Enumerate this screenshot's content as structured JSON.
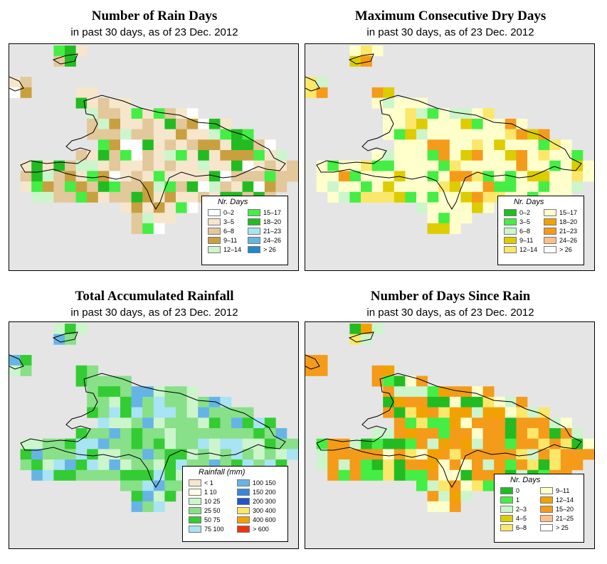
{
  "panels": [
    {
      "title": "Number of Rain Days",
      "subtitle": "in past 30 days, as of  23 Dec. 2012",
      "legend": {
        "title": "Nr. Days",
        "items": [
          {
            "label": "0–2",
            "color": "#ffffff"
          },
          {
            "label": "3–5",
            "color": "#f5e6cc"
          },
          {
            "label": "6–8",
            "color": "#e2c89a"
          },
          {
            "label": "9–11",
            "color": "#c8a040"
          },
          {
            "label": "12–14",
            "color": "#ccf5cc"
          },
          {
            "label": "15–17",
            "color": "#44ee44"
          },
          {
            "label": "18–20",
            "color": "#22bb22"
          },
          {
            "label": "21–23",
            "color": "#a8e4f4"
          },
          {
            "label": "24–26",
            "color": "#66b4e6"
          },
          {
            "label": "> 26",
            "color": "#2288cc"
          }
        ]
      }
    },
    {
      "title": "Maximum Consecutive Dry Days",
      "subtitle": "in past 30 days, as of  23 Dec. 2012",
      "legend": {
        "title": "Nr. Days",
        "items": [
          {
            "label": "0–2",
            "color": "#22bb22"
          },
          {
            "label": "3–5",
            "color": "#44ee44"
          },
          {
            "label": "6–8",
            "color": "#ccf5cc"
          },
          {
            "label": "9–11",
            "color": "#ddcc00"
          },
          {
            "label": "12–14",
            "color": "#fbe76a"
          },
          {
            "label": "15–17",
            "color": "#ffffcc"
          },
          {
            "label": "18–20",
            "color": "#f2a200"
          },
          {
            "label": "21–23",
            "color": "#f49b1a"
          },
          {
            "label": "24–26",
            "color": "#fbc08a"
          },
          {
            "label": "> 26",
            "color": "#ffffff"
          }
        ]
      }
    },
    {
      "title": "Total Accumulated Rainfall",
      "subtitle": "in past 30 days, as of  23 Dec. 2012",
      "legend": {
        "title": "Rainfall (mm)",
        "items": [
          {
            "label": "< 1",
            "color": "#f5e6cc"
          },
          {
            "label": "1  10",
            "color": "#fffbe5"
          },
          {
            "label": "10  25",
            "color": "#ccf5cc"
          },
          {
            "label": "25  50",
            "color": "#88e088"
          },
          {
            "label": "50  75",
            "color": "#33cc33"
          },
          {
            "label": "75  100",
            "color": "#a8e4f4"
          },
          {
            "label": "100  150",
            "color": "#66b4e6"
          },
          {
            "label": "150  200",
            "color": "#3388dd"
          },
          {
            "label": "200  300",
            "color": "#2255cc"
          },
          {
            "label": "300  400",
            "color": "#fbe76a"
          },
          {
            "label": "400  600",
            "color": "#f2a200"
          },
          {
            "label": "> 600",
            "color": "#ee3311"
          }
        ]
      }
    },
    {
      "title": "Number of Days Since Rain",
      "subtitle": "in past 30 days, as of  23 Dec. 2012",
      "legend": {
        "title": "Nr. Days",
        "items": [
          {
            "label": "0",
            "color": "#22bb22"
          },
          {
            "label": "1",
            "color": "#44ee44"
          },
          {
            "label": "2–3",
            "color": "#ccf5cc"
          },
          {
            "label": "4–5",
            "color": "#ddcc00"
          },
          {
            "label": "6–8",
            "color": "#fbe76a"
          },
          {
            "label": "9–11",
            "color": "#ffffcc"
          },
          {
            "label": "12–14",
            "color": "#f2a200"
          },
          {
            "label": "15–20",
            "color": "#f49b1a"
          },
          {
            "label": "21–25",
            "color": "#fbc08a"
          },
          {
            "label": "> 25",
            "color": "#ffffff"
          }
        ]
      }
    }
  ],
  "colors": {
    "map_background": "#e5e5e5",
    "coastline": "#000000"
  }
}
